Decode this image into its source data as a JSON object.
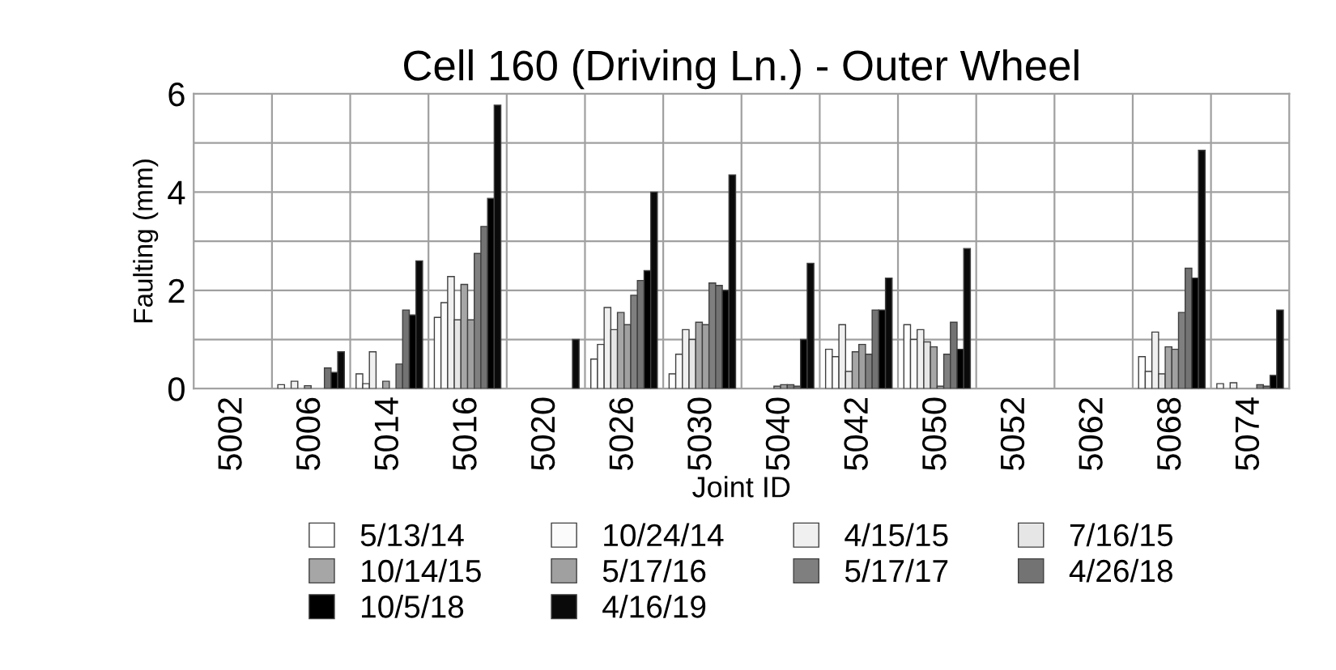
{
  "chart_data": {
    "type": "bar",
    "title": "Cell 160 (Driving Ln.) - Outer Wheel",
    "xlabel": "Joint ID",
    "ylabel": "Faulting (mm)",
    "categories": [
      "5002",
      "5006",
      "5014",
      "5016",
      "5020",
      "5026",
      "5030",
      "5040",
      "5042",
      "5050",
      "5052",
      "5062",
      "5068",
      "5074"
    ],
    "series": [
      {
        "name": "5/13/14",
        "color": "#ffffff",
        "values": [
          null,
          0.08,
          0.3,
          1.45,
          null,
          0.6,
          0.3,
          null,
          0.8,
          1.3,
          null,
          null,
          0.65,
          0.1
        ]
      },
      {
        "name": "10/24/14",
        "color": "#fbfbfb",
        "values": [
          null,
          null,
          0.1,
          1.75,
          null,
          0.9,
          0.7,
          null,
          0.65,
          1.0,
          null,
          null,
          0.35,
          null
        ]
      },
      {
        "name": "4/15/15",
        "color": "#f0f0f0",
        "values": [
          null,
          0.15,
          0.75,
          2.28,
          null,
          1.65,
          1.2,
          null,
          1.3,
          1.2,
          null,
          null,
          1.15,
          0.12
        ]
      },
      {
        "name": "7/16/15",
        "color": "#e6e6e6",
        "values": [
          null,
          null,
          null,
          1.4,
          null,
          1.2,
          1.0,
          null,
          0.35,
          0.95,
          null,
          null,
          0.3,
          null
        ]
      },
      {
        "name": "10/14/15",
        "color": "#a6a6a6",
        "values": [
          null,
          0.06,
          0.15,
          2.12,
          null,
          1.55,
          1.35,
          0.05,
          0.75,
          0.85,
          null,
          null,
          0.85,
          null
        ]
      },
      {
        "name": "5/17/16",
        "color": "#a0a0a0",
        "values": [
          null,
          null,
          null,
          1.4,
          null,
          1.3,
          1.3,
          0.08,
          0.9,
          0.05,
          null,
          null,
          0.8,
          null
        ]
      },
      {
        "name": "5/17/17",
        "color": "#7f7f7f",
        "values": [
          null,
          null,
          0.5,
          2.75,
          null,
          1.9,
          2.15,
          0.08,
          0.7,
          0.7,
          null,
          null,
          1.55,
          0.08
        ]
      },
      {
        "name": "4/26/18",
        "color": "#737373",
        "values": [
          null,
          0.42,
          1.6,
          3.3,
          null,
          2.2,
          2.1,
          0.05,
          1.6,
          1.35,
          null,
          null,
          2.45,
          0.05
        ]
      },
      {
        "name": "10/5/18",
        "color": "#000000",
        "values": [
          null,
          0.33,
          1.5,
          3.87,
          null,
          2.4,
          2.0,
          1.0,
          1.6,
          0.8,
          null,
          null,
          2.25,
          0.27
        ]
      },
      {
        "name": "4/16/19",
        "color": "#0a0a0a",
        "values": [
          null,
          0.75,
          2.6,
          5.77,
          1.0,
          4.0,
          4.35,
          2.55,
          2.25,
          2.85,
          null,
          null,
          4.85,
          1.6
        ]
      }
    ],
    "ylim": [
      0,
      6
    ],
    "yticks": [
      0,
      {
        "value": 1,
        "label": null
      },
      2,
      {
        "value": 3,
        "label": null
      },
      4,
      {
        "value": 5,
        "label": null
      },
      6
    ],
    "grid": true,
    "legend": "bottom"
  }
}
